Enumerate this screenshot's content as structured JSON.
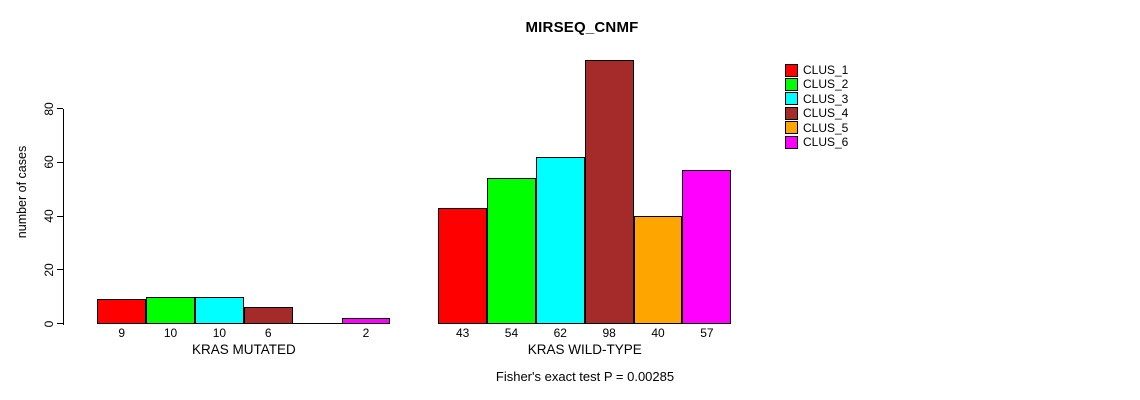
{
  "colors": {
    "background": "#FFFFFF",
    "axis": "#000000",
    "text": "#000000",
    "bar_border": "#000000"
  },
  "chart_data": {
    "type": "bar",
    "title": "MIRSEQ_CNMF",
    "ylabel": "number of cases",
    "xlabel": "",
    "ylim": [
      0,
      100
    ],
    "yticks": [
      0,
      20,
      40,
      60,
      80
    ],
    "grid": false,
    "legend_position": "right",
    "series": [
      {
        "name": "CLUS_1",
        "color": "#FF0000"
      },
      {
        "name": "CLUS_2",
        "color": "#00FF00"
      },
      {
        "name": "CLUS_3",
        "color": "#00FFFF"
      },
      {
        "name": "CLUS_4",
        "color": "#A52A2A"
      },
      {
        "name": "CLUS_5",
        "color": "#FFA500"
      },
      {
        "name": "CLUS_6",
        "color": "#FF00FF"
      }
    ],
    "groups": [
      {
        "label": "KRAS MUTATED",
        "values": [
          9,
          10,
          10,
          6,
          0,
          2
        ],
        "bar_labels": [
          "9",
          "10",
          "10",
          "6",
          "",
          "2"
        ]
      },
      {
        "label": "KRAS WILD-TYPE",
        "values": [
          43,
          54,
          62,
          98,
          40,
          57
        ],
        "bar_labels": [
          "43",
          "54",
          "62",
          "98",
          "40",
          "57"
        ]
      }
    ],
    "annotation": "Fisher's exact test P = 0.00285"
  }
}
